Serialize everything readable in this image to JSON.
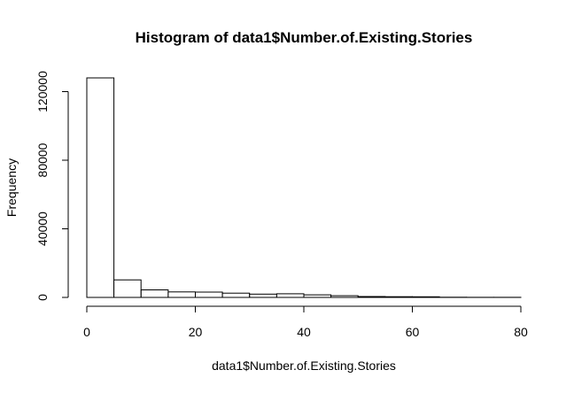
{
  "chart_data": {
    "type": "bar",
    "title": "Histogram of data1$Number.of.Existing.Stories",
    "xlabel": "data1$Number.of.Existing.Stories",
    "ylabel": "Frequency",
    "bins": [
      {
        "from": 0,
        "to": 5,
        "count": 128000
      },
      {
        "from": 5,
        "to": 10,
        "count": 10200
      },
      {
        "from": 10,
        "to": 15,
        "count": 4400
      },
      {
        "from": 15,
        "to": 20,
        "count": 3200
      },
      {
        "from": 20,
        "to": 25,
        "count": 3100
      },
      {
        "from": 25,
        "to": 30,
        "count": 2500
      },
      {
        "from": 30,
        "to": 35,
        "count": 1900
      },
      {
        "from": 35,
        "to": 40,
        "count": 2100
      },
      {
        "from": 40,
        "to": 45,
        "count": 1500
      },
      {
        "from": 45,
        "to": 50,
        "count": 1000
      },
      {
        "from": 50,
        "to": 55,
        "count": 500
      },
      {
        "from": 55,
        "to": 60,
        "count": 400
      },
      {
        "from": 60,
        "to": 65,
        "count": 350
      },
      {
        "from": 65,
        "to": 70,
        "count": 100
      },
      {
        "from": 70,
        "to": 75,
        "count": 60
      },
      {
        "from": 75,
        "to": 80,
        "count": 40
      }
    ],
    "xlim": [
      0,
      80
    ],
    "ylim": [
      0,
      128000
    ],
    "x_ticks": [
      0,
      20,
      40,
      60,
      80
    ],
    "x_tick_labels": [
      "0",
      "20",
      "40",
      "60",
      "80"
    ],
    "y_ticks": [
      0,
      40000,
      80000,
      120000
    ],
    "y_tick_labels": [
      "0",
      "40000",
      "80000",
      "120000"
    ],
    "grid": false,
    "bar_fill": "#ffffff",
    "bar_stroke": "#000000"
  }
}
